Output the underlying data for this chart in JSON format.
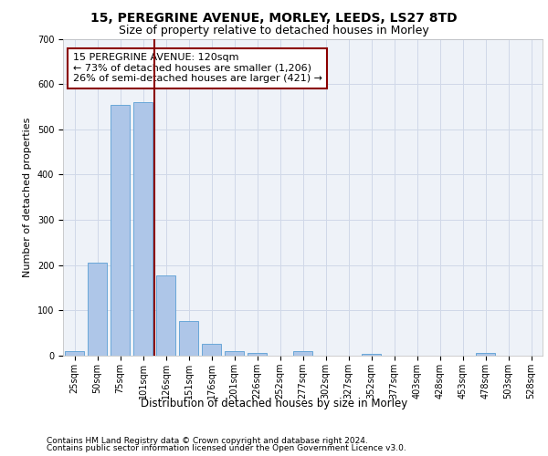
{
  "title1": "15, PEREGRINE AVENUE, MORLEY, LEEDS, LS27 8TD",
  "title2": "Size of property relative to detached houses in Morley",
  "xlabel": "Distribution of detached houses by size in Morley",
  "ylabel": "Number of detached properties",
  "footer1": "Contains HM Land Registry data © Crown copyright and database right 2024.",
  "footer2": "Contains public sector information licensed under the Open Government Licence v3.0.",
  "annotation_line1": "15 PEREGRINE AVENUE: 120sqm",
  "annotation_line2": "← 73% of detached houses are smaller (1,206)",
  "annotation_line3": "26% of semi-detached houses are larger (421) →",
  "categories": [
    "25sqm",
    "50sqm",
    "75sqm",
    "101sqm",
    "126sqm",
    "151sqm",
    "176sqm",
    "201sqm",
    "226sqm",
    "252sqm",
    "277sqm",
    "302sqm",
    "327sqm",
    "352sqm",
    "377sqm",
    "403sqm",
    "428sqm",
    "453sqm",
    "478sqm",
    "503sqm",
    "528sqm"
  ],
  "values": [
    10,
    205,
    553,
    560,
    178,
    77,
    27,
    11,
    6,
    0,
    10,
    0,
    0,
    5,
    0,
    0,
    0,
    0,
    6,
    0,
    0
  ],
  "bar_color": "#aec6e8",
  "bar_edge_color": "#5a9fd4",
  "vline_color": "#8b0000",
  "ylim": [
    0,
    700
  ],
  "yticks": [
    0,
    100,
    200,
    300,
    400,
    500,
    600,
    700
  ],
  "grid_color": "#d0d8e8",
  "bg_color": "#eef2f8",
  "annotation_box_color": "#8b0000",
  "title1_fontsize": 10,
  "title2_fontsize": 9,
  "xlabel_fontsize": 8.5,
  "ylabel_fontsize": 8,
  "tick_fontsize": 7,
  "annotation_fontsize": 8,
  "footer_fontsize": 6.5
}
